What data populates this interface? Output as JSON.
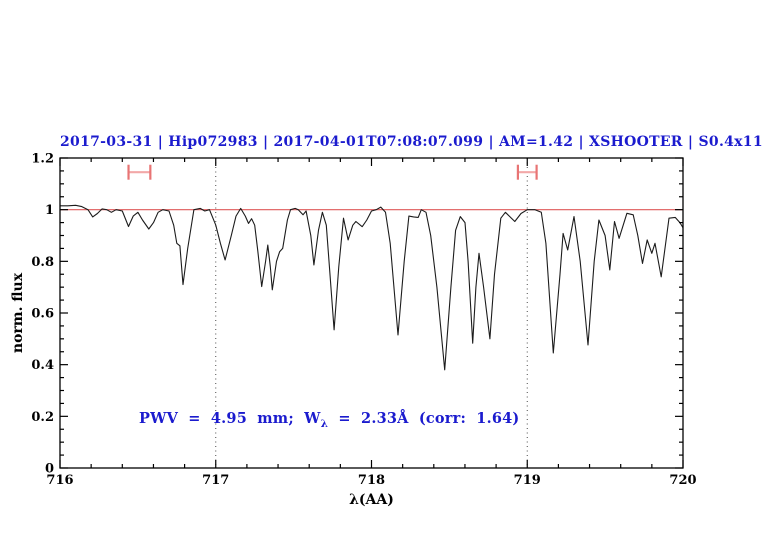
{
  "title": "2017-03-31 | Hip072983 | 2017-04-01T07:08:07.099 | AM=1.42 | XSHOOTER | S0.4x11",
  "annotation": {
    "pre": "PWV = 4.95 mm; W",
    "sub": "λ",
    "post": " = 2.33Å (corr: 1.64)"
  },
  "colors": {
    "title_text": "#1b1bce",
    "annotation_text": "#1b1bce",
    "reference_line": "#df5a5a",
    "marker_bar": "#f2a8a8",
    "marker_cap": "#e87474",
    "dotted_line": "#4a4a4a",
    "spectrum": "#1c1c1c",
    "axis": "#000000"
  },
  "chart_data": {
    "type": "line",
    "title": "2017-03-31 | Hip072983 | 2017-04-01T07:08:07.099 | AM=1.42 | XSHOOTER | S0.4x11",
    "xlabel": "λ(AA)",
    "ylabel": "norm. flux",
    "xlim": [
      716,
      720
    ],
    "ylim": [
      0,
      1.2
    ],
    "grid": false,
    "x_major_ticks": [
      716,
      717,
      718,
      719,
      720
    ],
    "x_tick_labels": [
      "716",
      "717",
      "718",
      "719",
      "720"
    ],
    "x_minor_step": 0.2,
    "y_major_ticks": [
      0,
      0.2,
      0.4,
      0.6,
      0.8,
      1,
      1.2
    ],
    "y_tick_labels": [
      "0",
      "0.2",
      "0.4",
      "0.6",
      "0.8",
      "1",
      "1.2"
    ],
    "y_minor_step": 0.05,
    "reference_line_y": 1.0,
    "dotted_vlines": [
      717,
      719
    ],
    "range_markers": [
      {
        "x_start": 716.44,
        "x_end": 716.58,
        "y": 1.145,
        "cap_half_height": 0.029
      },
      {
        "x_start": 718.94,
        "x_end": 719.06,
        "y": 1.145,
        "cap_half_height": 0.029
      }
    ],
    "series": [
      {
        "name": "telluric-spectrum",
        "x": [
          716.0,
          716.05,
          716.1,
          716.14,
          716.18,
          716.21,
          716.24,
          716.27,
          716.3,
          716.33,
          716.36,
          716.4,
          716.44,
          716.47,
          716.5,
          716.53,
          716.57,
          716.6,
          716.63,
          716.66,
          716.7,
          716.73,
          716.75,
          716.77,
          716.79,
          716.82,
          716.86,
          716.9,
          716.93,
          716.96,
          717.0,
          717.03,
          717.06,
          717.1,
          717.13,
          717.16,
          717.19,
          717.21,
          717.23,
          717.25,
          717.27,
          717.295,
          717.32,
          717.334,
          717.35,
          717.363,
          717.39,
          717.41,
          717.43,
          717.46,
          717.48,
          717.51,
          717.53,
          717.56,
          717.58,
          717.61,
          717.63,
          717.66,
          717.685,
          717.71,
          717.73,
          717.76,
          717.79,
          717.82,
          717.85,
          717.88,
          717.9,
          717.94,
          717.97,
          718.0,
          718.03,
          718.06,
          718.09,
          718.12,
          718.17,
          718.21,
          718.24,
          718.27,
          718.3,
          718.32,
          718.35,
          718.38,
          718.42,
          718.47,
          718.51,
          718.54,
          718.57,
          718.6,
          718.62,
          718.65,
          718.67,
          718.69,
          718.72,
          718.76,
          718.79,
          718.83,
          718.86,
          718.92,
          718.96,
          719.0,
          719.05,
          719.09,
          719.12,
          719.167,
          719.21,
          719.23,
          719.26,
          719.3,
          719.34,
          719.39,
          719.43,
          719.46,
          719.5,
          719.53,
          719.56,
          719.59,
          719.64,
          719.68,
          719.71,
          719.74,
          719.77,
          719.8,
          719.82,
          719.86,
          719.91,
          719.95,
          719.98,
          720.0
        ],
        "y": [
          1.015,
          1.015,
          1.017,
          1.012,
          1.0,
          0.972,
          0.985,
          1.003,
          1.0,
          0.99,
          1.0,
          0.995,
          0.935,
          0.975,
          0.99,
          0.96,
          0.925,
          0.95,
          0.99,
          1.0,
          0.995,
          0.94,
          0.87,
          0.86,
          0.71,
          0.85,
          1.0,
          1.005,
          0.995,
          1.0,
          0.94,
          0.87,
          0.805,
          0.9,
          0.975,
          1.005,
          0.975,
          0.947,
          0.965,
          0.94,
          0.84,
          0.702,
          0.8,
          0.863,
          0.78,
          0.69,
          0.8,
          0.837,
          0.85,
          0.96,
          1.0,
          1.005,
          1.0,
          0.98,
          0.995,
          0.9,
          0.786,
          0.92,
          0.99,
          0.94,
          0.78,
          0.535,
          0.78,
          0.967,
          0.883,
          0.94,
          0.954,
          0.934,
          0.96,
          0.995,
          1.0,
          1.01,
          0.99,
          0.87,
          0.515,
          0.8,
          0.975,
          0.972,
          0.97,
          1.0,
          0.99,
          0.9,
          0.7,
          0.38,
          0.7,
          0.92,
          0.973,
          0.95,
          0.8,
          0.483,
          0.7,
          0.831,
          0.7,
          0.5,
          0.75,
          0.967,
          0.99,
          0.954,
          0.985,
          1.0,
          1.0,
          0.99,
          0.87,
          0.445,
          0.75,
          0.908,
          0.844,
          0.973,
          0.8,
          0.476,
          0.8,
          0.96,
          0.9,
          0.767,
          0.954,
          0.889,
          0.986,
          0.98,
          0.9,
          0.792,
          0.883,
          0.831,
          0.87,
          0.74,
          0.967,
          0.97,
          0.95,
          0.93
        ]
      }
    ]
  }
}
